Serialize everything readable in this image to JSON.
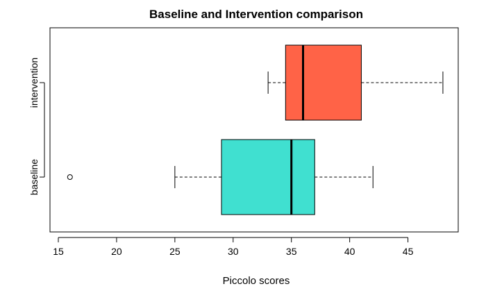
{
  "chart_data": {
    "type": "boxplot",
    "orientation": "horizontal",
    "title": "Baseline and Intervention comparison",
    "xlabel": "Piccolo scores",
    "ylabel": "",
    "xlim": [
      15,
      48.6
    ],
    "x_ticks": [
      15,
      20,
      25,
      30,
      35,
      40,
      45
    ],
    "grid": false,
    "categories": [
      "baseline",
      "intervention"
    ],
    "series": [
      {
        "category": "baseline",
        "color": "#40E0D0",
        "whisker_low": 25,
        "q1": 29,
        "median": 35,
        "q3": 37,
        "whisker_high": 42,
        "outliers": [
          16
        ]
      },
      {
        "category": "intervention",
        "color": "#FF6347",
        "whisker_low": 33,
        "q1": 34.5,
        "median": 36,
        "q3": 41,
        "whisker_high": 48,
        "outliers": []
      }
    ]
  }
}
